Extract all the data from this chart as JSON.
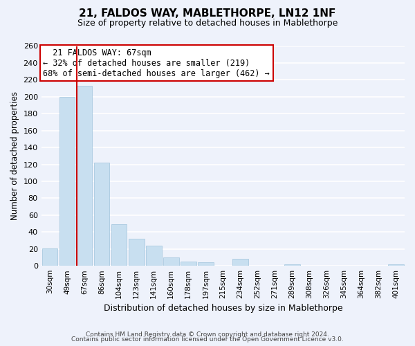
{
  "title1": "21, FALDOS WAY, MABLETHORPE, LN12 1NF",
  "title2": "Size of property relative to detached houses in Mablethorpe",
  "xlabel": "Distribution of detached houses by size in Mablethorpe",
  "ylabel": "Number of detached properties",
  "bar_labels": [
    "30sqm",
    "49sqm",
    "67sqm",
    "86sqm",
    "104sqm",
    "123sqm",
    "141sqm",
    "160sqm",
    "178sqm",
    "197sqm",
    "215sqm",
    "234sqm",
    "252sqm",
    "271sqm",
    "289sqm",
    "308sqm",
    "326sqm",
    "345sqm",
    "364sqm",
    "382sqm",
    "401sqm"
  ],
  "bar_values": [
    21,
    200,
    213,
    122,
    49,
    32,
    24,
    10,
    5,
    4,
    0,
    8,
    0,
    0,
    2,
    0,
    0,
    0,
    0,
    0,
    2
  ],
  "bar_color": "#c8dff0",
  "bar_edge_color": "#a0c4dc",
  "vline_color": "#cc0000",
  "annotation_title": "21 FALDOS WAY: 67sqm",
  "annotation_line1": "← 32% of detached houses are smaller (219)",
  "annotation_line2": "68% of semi-detached houses are larger (462) →",
  "annotation_box_color": "#ffffff",
  "annotation_box_edge": "#cc0000",
  "footer1": "Contains HM Land Registry data © Crown copyright and database right 2024.",
  "footer2": "Contains public sector information licensed under the Open Government Licence v3.0.",
  "ylim": [
    0,
    260
  ],
  "yticks": [
    0,
    20,
    40,
    60,
    80,
    100,
    120,
    140,
    160,
    180,
    200,
    220,
    240,
    260
  ],
  "background_color": "#eef2fb",
  "grid_color": "#ffffff",
  "vline_bar_index": 2
}
